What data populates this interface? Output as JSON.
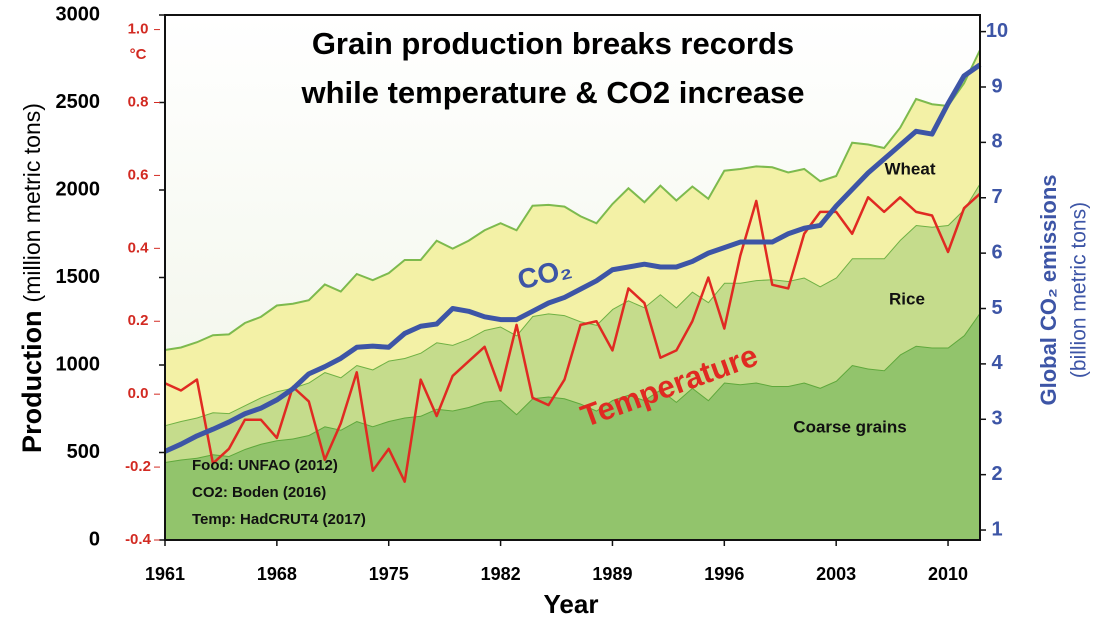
{
  "chart_data": {
    "type": "combo",
    "title": [
      "Grain production breaks records",
      "while temperature & CO2 increase"
    ],
    "xlabel": "Year",
    "ylabel": [
      "Production",
      "(million metric tons)"
    ],
    "y3label": [
      "Global CO₂ emissions",
      "(billion metric tons)"
    ],
    "y2unit": "°C",
    "annotations": [
      "Food: UNFAO (2012)",
      "CO2: Boden (2016)",
      "Temp: HadCRUT4 (2017)"
    ],
    "x": [
      1961,
      1962,
      1963,
      1964,
      1965,
      1966,
      1967,
      1968,
      1969,
      1970,
      1971,
      1972,
      1973,
      1974,
      1975,
      1976,
      1977,
      1978,
      1979,
      1980,
      1981,
      1982,
      1983,
      1984,
      1985,
      1986,
      1987,
      1988,
      1989,
      1990,
      1991,
      1992,
      1993,
      1994,
      1995,
      1996,
      1997,
      1998,
      1999,
      2000,
      2001,
      2002,
      2003,
      2004,
      2005,
      2006,
      2007,
      2008,
      2009,
      2010,
      2011,
      2012
    ],
    "xlim": [
      1961,
      2012
    ],
    "xticks": [
      1961,
      1968,
      1975,
      1982,
      1989,
      1996,
      2003,
      2010
    ],
    "ylim": [
      0,
      3000
    ],
    "yticks": [
      0,
      500,
      1000,
      1500,
      2000,
      2500,
      3000
    ],
    "y2lim": [
      -0.4,
      1.04
    ],
    "y2ticks": [
      -0.4,
      -0.2,
      {
        "value": 0,
        "label": "0.0"
      },
      0.2,
      0.4,
      0.6,
      0.8,
      {
        "value": 1,
        "label": "1.0"
      }
    ],
    "y3lim": [
      0.82,
      10.3
    ],
    "y3ticks": [
      1,
      2,
      3,
      4,
      5,
      6,
      7,
      8,
      9,
      10
    ],
    "stacked": true,
    "series": [
      {
        "name": "Coarse grains",
        "type": "area",
        "axis": "y",
        "color": "#92c46c",
        "line_color": "#5fa83c",
        "values": [
          446,
          460,
          470,
          490,
          480,
          520,
          550,
          570,
          580,
          600,
          650,
          630,
          680,
          650,
          680,
          700,
          710,
          750,
          740,
          760,
          790,
          800,
          720,
          810,
          820,
          810,
          780,
          740,
          800,
          830,
          800,
          860,
          790,
          870,
          800,
          900,
          890,
          900,
          880,
          880,
          900,
          870,
          910,
          1000,
          980,
          970,
          1060,
          1110,
          1100,
          1100,
          1170,
          1300
        ]
      },
      {
        "name": "Rice",
        "type": "area",
        "axis": "y",
        "color": "#c5dc8c",
        "line_color": "#6fb144",
        "values": [
          210,
          220,
          230,
          240,
          245,
          250,
          265,
          280,
          290,
          300,
          310,
          300,
          320,
          325,
          345,
          340,
          360,
          380,
          375,
          390,
          410,
          420,
          450,
          470,
          475,
          475,
          470,
          490,
          520,
          540,
          530,
          545,
          540,
          550,
          560,
          570,
          580,
          585,
          610,
          600,
          600,
          580,
          590,
          610,
          630,
          640,
          655,
          690,
          690,
          700,
          720,
          740
        ]
      },
      {
        "name": "Wheat",
        "type": "area",
        "axis": "y",
        "color": "#f3f1a6",
        "line_color": "#7dba4e",
        "values": [
          430,
          420,
          430,
          440,
          450,
          470,
          460,
          490,
          480,
          470,
          500,
          490,
          520,
          510,
          500,
          560,
          530,
          580,
          550,
          560,
          570,
          590,
          600,
          630,
          620,
          620,
          600,
          580,
          600,
          640,
          600,
          620,
          610,
          600,
          590,
          640,
          650,
          650,
          640,
          620,
          620,
          600,
          580,
          660,
          650,
          630,
          640,
          720,
          700,
          680,
          720,
          760
        ]
      },
      {
        "name": "Temperature",
        "type": "line",
        "axis": "y2",
        "color": "#e02a22",
        "values": [
          0.03,
          0.01,
          0.04,
          -0.19,
          -0.15,
          -0.07,
          -0.07,
          -0.12,
          0.02,
          -0.02,
          -0.18,
          -0.08,
          0.06,
          -0.21,
          -0.15,
          -0.24,
          0.04,
          -0.06,
          0.05,
          0.09,
          0.13,
          0.01,
          0.19,
          -0.01,
          -0.03,
          0.04,
          0.19,
          0.2,
          0.12,
          0.29,
          0.25,
          0.1,
          0.12,
          0.2,
          0.32,
          0.18,
          0.38,
          0.53,
          0.3,
          0.29,
          0.44,
          0.5,
          0.5,
          0.44,
          0.54,
          0.5,
          0.54,
          0.5,
          0.49,
          0.39,
          0.51,
          0.55
        ]
      },
      {
        "name": "CO₂",
        "type": "line",
        "axis": "y3",
        "color": "#3d55a6",
        "values": [
          2.42,
          2.55,
          2.7,
          2.82,
          2.95,
          3.1,
          3.2,
          3.35,
          3.55,
          3.82,
          3.95,
          4.1,
          4.3,
          4.32,
          4.3,
          4.55,
          4.68,
          4.72,
          5.0,
          4.95,
          4.85,
          4.8,
          4.8,
          4.95,
          5.1,
          5.2,
          5.35,
          5.5,
          5.7,
          5.75,
          5.8,
          5.75,
          5.75,
          5.85,
          6.0,
          6.1,
          6.2,
          6.2,
          6.2,
          6.35,
          6.45,
          6.5,
          6.85,
          7.15,
          7.45,
          7.7,
          7.95,
          8.2,
          8.15,
          8.7,
          9.2,
          9.4
        ]
      }
    ]
  }
}
